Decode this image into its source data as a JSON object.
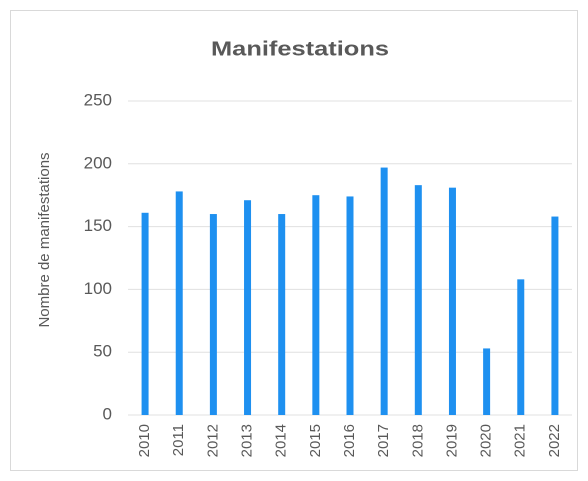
{
  "chart_data": {
    "type": "bar",
    "title": "Manifestations",
    "y_label": "Nombre de manifestations",
    "categories": [
      "2010",
      "2011",
      "2012",
      "2013",
      "2014",
      "2015",
      "2016",
      "2017",
      "2018",
      "2019",
      "2020",
      "2021",
      "2022"
    ],
    "values": [
      161,
      178,
      160,
      171,
      160,
      175,
      174,
      197,
      183,
      181,
      53,
      108,
      158
    ],
    "color": "#1e90f0",
    "ylim": [
      0,
      250
    ],
    "yticks": [
      0,
      50,
      100,
      150,
      200,
      250
    ],
    "grid": true
  }
}
